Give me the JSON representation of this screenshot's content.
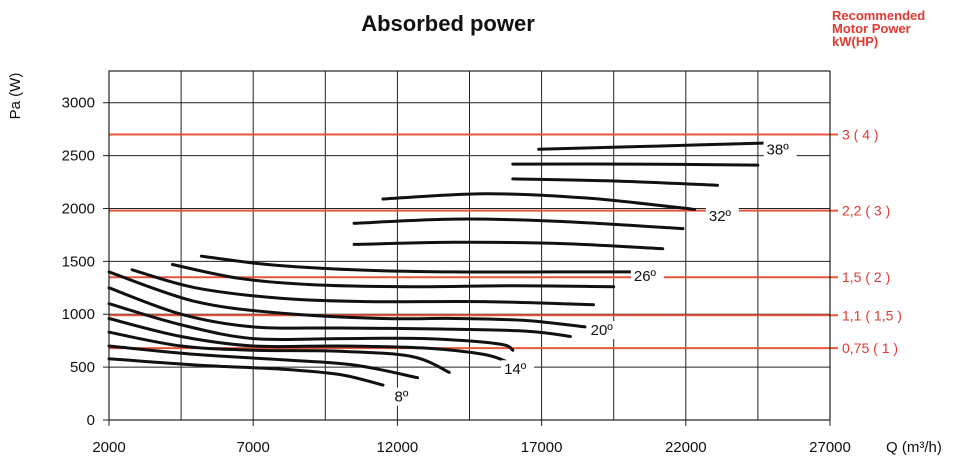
{
  "chart_data": {
    "type": "line",
    "title": "Absorbed power",
    "ylabel": "Pa (W)",
    "xlabel": "Q (m³/h)",
    "xlim": [
      2000,
      27000
    ],
    "ylim": [
      0,
      3300
    ],
    "x_ticks": [
      "2000",
      "7000",
      "12000",
      "17000",
      "22000",
      "27000"
    ],
    "y_ticks": [
      "0",
      "500",
      "1000",
      "1500",
      "2000",
      "2500",
      "3000"
    ],
    "grid": true,
    "motor_power": {
      "title_lines": [
        "Recommended",
        "Motor Power",
        "kW(HP)"
      ],
      "levels": [
        {
          "label": "3 ( 4 )",
          "value": 2700
        },
        {
          "label": "2,2 ( 3 )",
          "value": 1980
        },
        {
          "label": "1,5 ( 2 )",
          "value": 1350
        },
        {
          "label": "1,1 ( 1,5 )",
          "value": 990
        },
        {
          "label": "0,75 ( 1 )",
          "value": 680
        }
      ]
    },
    "angle_labels": [
      {
        "text": "8º",
        "x": 11900,
        "y": 220
      },
      {
        "text": "14º",
        "x": 15700,
        "y": 480
      },
      {
        "text": "20º",
        "x": 18700,
        "y": 850
      },
      {
        "text": "26º",
        "x": 20200,
        "y": 1360
      },
      {
        "text": "32º",
        "x": 22800,
        "y": 1930
      },
      {
        "text": "38º",
        "x": 24800,
        "y": 2560
      }
    ],
    "series": [
      {
        "points": [
          [
            2000,
            580
          ],
          [
            5000,
            520
          ],
          [
            8000,
            480
          ],
          [
            10000,
            430
          ],
          [
            11500,
            330
          ]
        ]
      },
      {
        "points": [
          [
            2000,
            700
          ],
          [
            5000,
            620
          ],
          [
            8000,
            570
          ],
          [
            10500,
            520
          ],
          [
            12700,
            400
          ]
        ]
      },
      {
        "points": [
          [
            2000,
            830
          ],
          [
            4500,
            700
          ],
          [
            7000,
            660
          ],
          [
            10000,
            650
          ],
          [
            12500,
            600
          ],
          [
            13800,
            450
          ]
        ]
      },
      {
        "points": [
          [
            2000,
            960
          ],
          [
            4500,
            790
          ],
          [
            7000,
            700
          ],
          [
            10000,
            700
          ],
          [
            13000,
            680
          ],
          [
            15000,
            620
          ],
          [
            15900,
            540
          ]
        ]
      },
      {
        "points": [
          [
            2000,
            1100
          ],
          [
            4500,
            900
          ],
          [
            7000,
            770
          ],
          [
            10000,
            770
          ],
          [
            13000,
            770
          ],
          [
            15500,
            720
          ],
          [
            16000,
            660
          ]
        ]
      },
      {
        "points": [
          [
            2000,
            1250
          ],
          [
            4500,
            1000
          ],
          [
            7000,
            880
          ],
          [
            10000,
            870
          ],
          [
            13500,
            860
          ],
          [
            16500,
            840
          ],
          [
            18000,
            790
          ]
        ]
      },
      {
        "points": [
          [
            2000,
            1400
          ],
          [
            5000,
            1120
          ],
          [
            8000,
            1010
          ],
          [
            11500,
            960
          ],
          [
            14000,
            960
          ],
          [
            16500,
            940
          ],
          [
            18500,
            880
          ]
        ]
      },
      {
        "points": [
          [
            2800,
            1420
          ],
          [
            5000,
            1250
          ],
          [
            8000,
            1150
          ],
          [
            11000,
            1120
          ],
          [
            15000,
            1120
          ],
          [
            18800,
            1090
          ]
        ]
      },
      {
        "points": [
          [
            4200,
            1470
          ],
          [
            6500,
            1340
          ],
          [
            9000,
            1280
          ],
          [
            12500,
            1260
          ],
          [
            16000,
            1270
          ],
          [
            19500,
            1260
          ]
        ]
      },
      {
        "points": [
          [
            5200,
            1550
          ],
          [
            7500,
            1470
          ],
          [
            10500,
            1420
          ],
          [
            14000,
            1400
          ],
          [
            17500,
            1400
          ],
          [
            20600,
            1400
          ]
        ]
      },
      {
        "points": [
          [
            10500,
            1660
          ],
          [
            14000,
            1680
          ],
          [
            17500,
            1670
          ],
          [
            21200,
            1620
          ]
        ]
      },
      {
        "points": [
          [
            10500,
            1860
          ],
          [
            14000,
            1900
          ],
          [
            17500,
            1880
          ],
          [
            21900,
            1810
          ]
        ]
      },
      {
        "points": [
          [
            11500,
            2090
          ],
          [
            15000,
            2140
          ],
          [
            18500,
            2100
          ],
          [
            21700,
            2010
          ],
          [
            22300,
            1990
          ]
        ]
      },
      {
        "points": [
          [
            16000,
            2280
          ],
          [
            19500,
            2260
          ],
          [
            23100,
            2220
          ]
        ]
      },
      {
        "points": [
          [
            16000,
            2420
          ],
          [
            20000,
            2420
          ],
          [
            24500,
            2410
          ]
        ]
      },
      {
        "points": [
          [
            16900,
            2560
          ],
          [
            21000,
            2590
          ],
          [
            25000,
            2620
          ]
        ]
      }
    ]
  }
}
